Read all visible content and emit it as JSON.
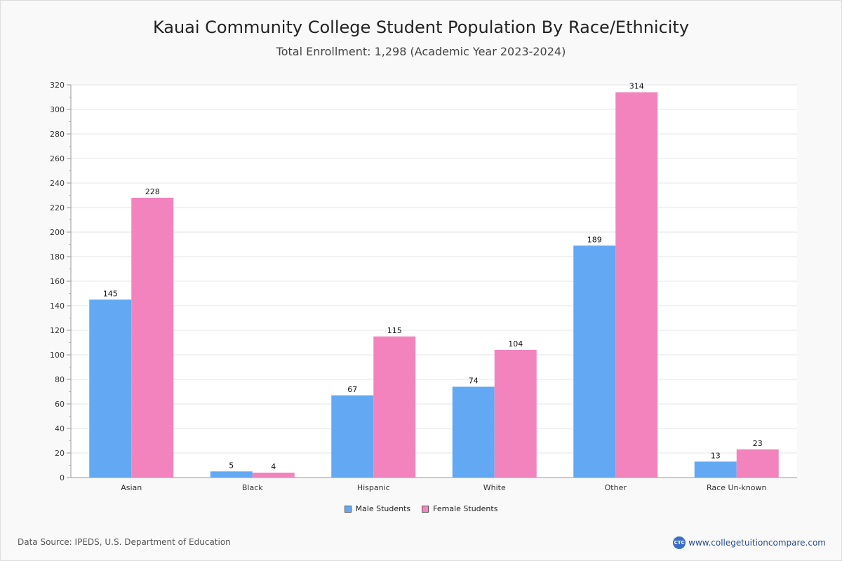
{
  "chart_data": {
    "type": "bar",
    "title": "Kauai Community College Student Population By Race/Ethnicity",
    "subtitle": "Total Enrollment: 1,298 (Academic Year 2023-2024)",
    "categories": [
      "Asian",
      "Black",
      "Hispanic",
      "White",
      "Other",
      "Race Un-known"
    ],
    "series": [
      {
        "name": "Male Students",
        "values": [
          145,
          5,
          67,
          74,
          189,
          13
        ],
        "color": "#62a8f3"
      },
      {
        "name": "Female Students",
        "values": [
          228,
          4,
          115,
          104,
          314,
          23
        ],
        "color": "#f383bd"
      }
    ],
    "ylim": [
      0,
      320
    ],
    "ytick_step": 20,
    "grid": true,
    "legend_position": "bottom-center",
    "xlabel": "",
    "ylabel": ""
  },
  "footer": {
    "source": "Data Source: IPEDS, U.S. Department of Education",
    "brand_logo": "CTC",
    "brand_url": "www.collegetuitioncompare.com"
  }
}
